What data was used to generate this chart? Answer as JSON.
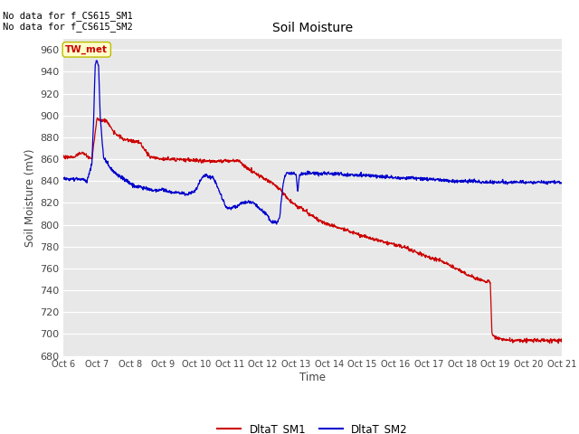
{
  "title": "Soil Moisture",
  "ylabel": "Soil Moisture (mV)",
  "xlabel": "Time",
  "ylim": [
    680,
    970
  ],
  "yticks": [
    680,
    700,
    720,
    740,
    760,
    780,
    800,
    820,
    840,
    860,
    880,
    900,
    920,
    940,
    960
  ],
  "text_no_data1": "No data for f_CS615_SM1",
  "text_no_data2": "No data for f_CS615_SM2",
  "legend_label": "TW_met",
  "line1_label": "DltaT_SM1",
  "line2_label": "DltaT_SM2",
  "line1_color": "#cc0000",
  "line2_color": "#0000cc",
  "fig_bg_color": "#ffffff",
  "plot_bg_color": "#e8e8e8",
  "x_start": 6,
  "x_end": 21,
  "xtick_labels": [
    "Oct 6",
    "Oct 7",
    "Oct 8",
    "Oct 9",
    "Oct 10",
    "Oct 11",
    "Oct 12",
    "Oct 13",
    "Oct 14",
    "Oct 15",
    "Oct 16",
    "Oct 17",
    "Oct 18",
    "Oct 19",
    "Oct 20",
    "Oct 21"
  ],
  "xtick_positions": [
    6,
    7,
    8,
    9,
    10,
    11,
    12,
    13,
    14,
    15,
    16,
    17,
    18,
    19,
    20,
    21
  ]
}
